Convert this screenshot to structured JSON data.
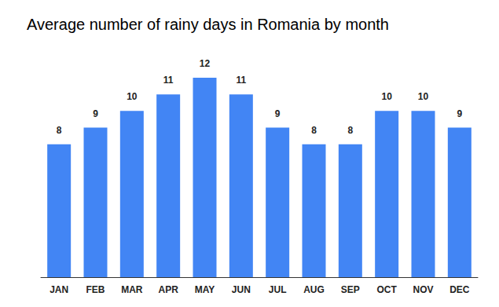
{
  "chart_data": {
    "type": "bar",
    "title": "Average number of rainy days in Romania by month",
    "categories": [
      "JAN",
      "FEB",
      "MAR",
      "APR",
      "MAY",
      "JUN",
      "JUL",
      "AUG",
      "SEP",
      "OCT",
      "NOV",
      "DEC"
    ],
    "values": [
      8,
      9,
      10,
      11,
      12,
      11,
      9,
      8,
      8,
      10,
      10,
      9
    ],
    "color": "#4285f4",
    "ylim": [
      0,
      12
    ],
    "grid": false,
    "data_labels": true,
    "tick_labels": "x"
  }
}
